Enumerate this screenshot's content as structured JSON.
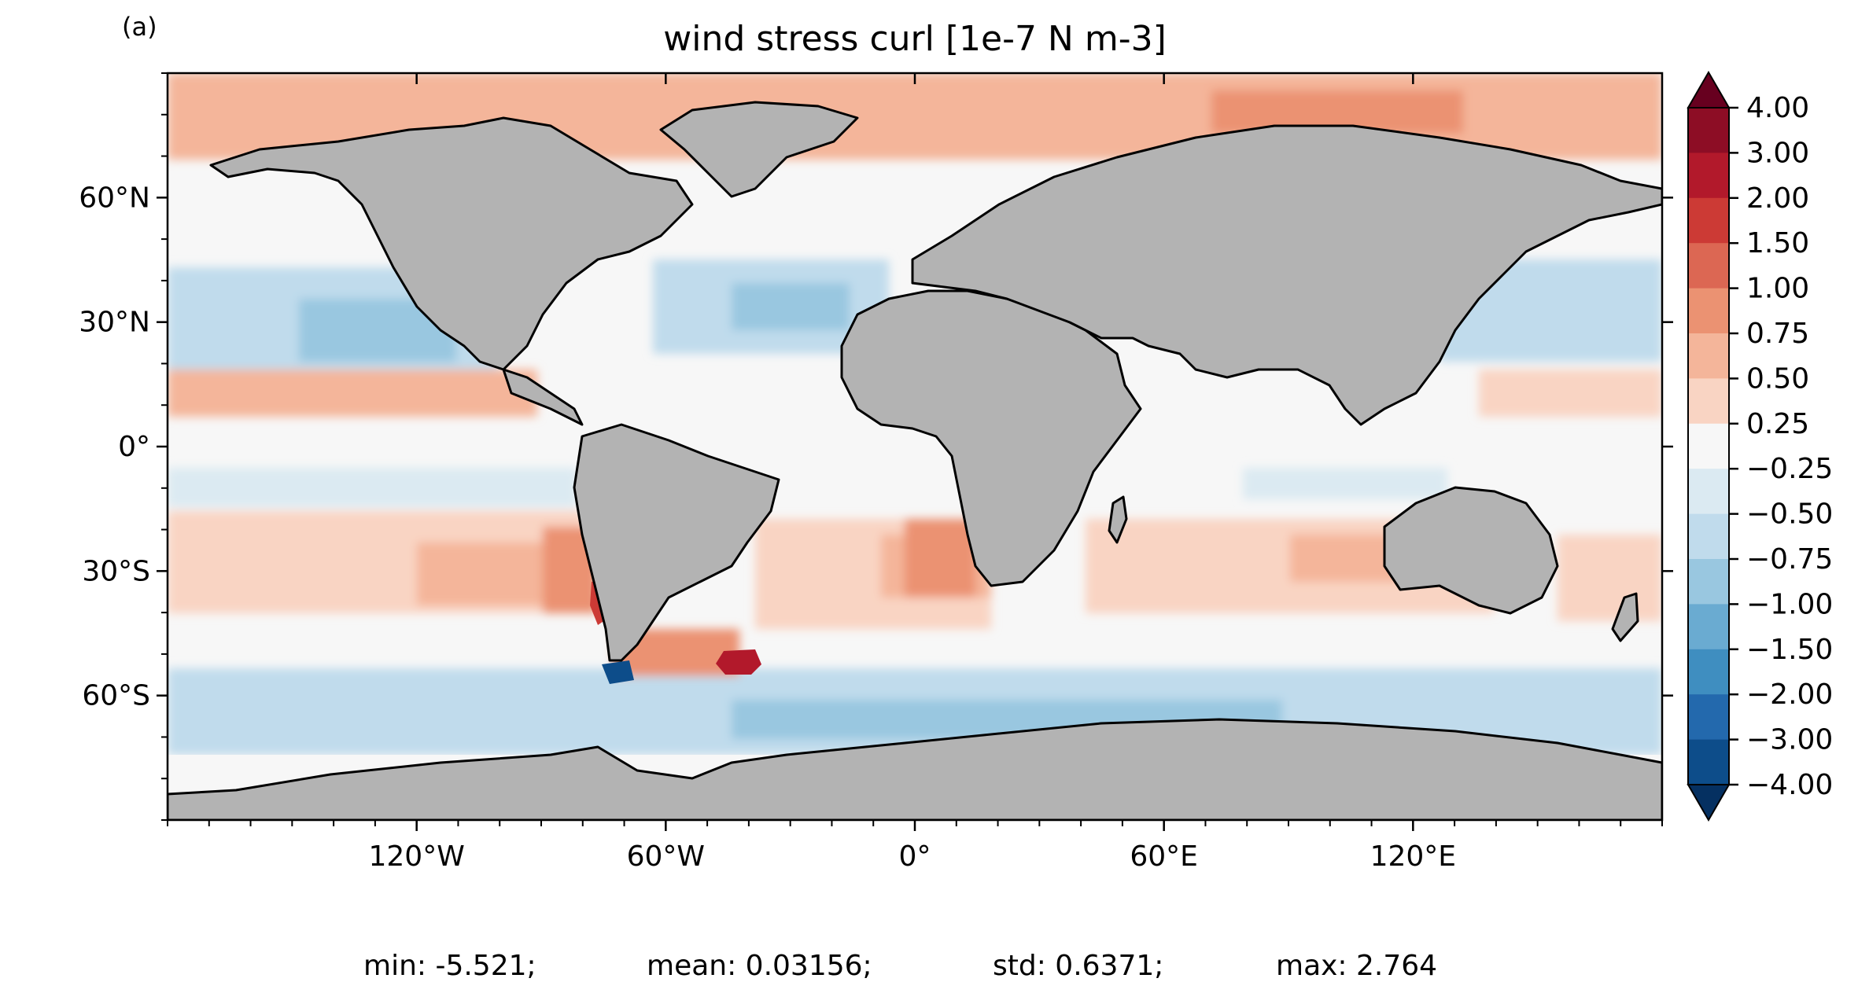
{
  "panel_label": "(a)",
  "title": "wind stress curl [1e-7 N m-3]",
  "stats": {
    "min": "min: -5.521;",
    "mean": "mean: 0.03156;",
    "std": "std: 0.6371;",
    "max": "max: 2.764"
  },
  "map": {
    "projection": "PlateCarree",
    "lon_range": [
      -180,
      180
    ],
    "lat_range": [
      -90,
      90
    ],
    "land_color": "#b3b3b3",
    "coastline_color": "#000000",
    "x_ticks": [
      {
        "lon": -120,
        "label": "120°W"
      },
      {
        "lon": -60,
        "label": "60°W"
      },
      {
        "lon": 0,
        "label": "0°"
      },
      {
        "lon": 60,
        "label": "60°E"
      },
      {
        "lon": 120,
        "label": "120°E"
      }
    ],
    "y_ticks": [
      {
        "lat": 60,
        "label": "60°N"
      },
      {
        "lat": 30,
        "label": "30°N"
      },
      {
        "lat": 0,
        "label": "0°"
      },
      {
        "lat": -30,
        "label": "30°S"
      },
      {
        "lat": -60,
        "label": "60°S"
      }
    ]
  },
  "colorbar": {
    "labels": [
      "4.00",
      "3.00",
      "2.00",
      "1.50",
      "1.00",
      "0.75",
      "0.50",
      "0.25",
      "−0.25",
      "−0.50",
      "−0.75",
      "−1.00",
      "−1.50",
      "−2.00",
      "−3.00",
      "−4.00"
    ],
    "colors": [
      "#8d0d25",
      "#b2192b",
      "#cc3a35",
      "#dc6753",
      "#eb9272",
      "#f4b59a",
      "#f9d4c3",
      "#f7f7f7",
      "#dbeaf2",
      "#c0dbec",
      "#99c7e0",
      "#6aabd1",
      "#3f8ec0",
      "#2369ad",
      "#0d4d8a"
    ],
    "extend_max_color": "#67001f",
    "extend_min_color": "#053061"
  }
}
